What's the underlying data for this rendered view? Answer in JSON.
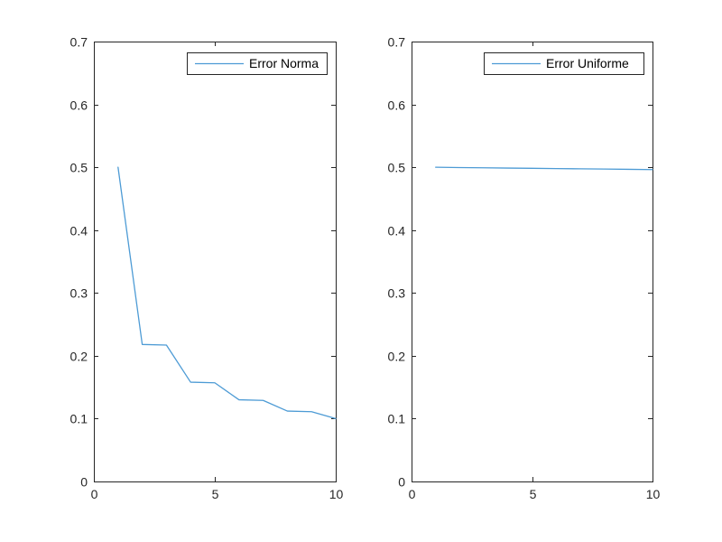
{
  "figure": {
    "background": "#ffffff",
    "axis_color": "#262626",
    "tick_label_color": "#262626",
    "legend_text_color": "#000000",
    "legend_border_color": "#262626",
    "legend_background": "#ffffff",
    "line_color": "#4D9BD5"
  },
  "chart_data": [
    {
      "type": "line",
      "title": "",
      "xlabel": "",
      "ylabel": "",
      "x": [
        1,
        2,
        3,
        4,
        5,
        6,
        7,
        8,
        9,
        10
      ],
      "series": [
        {
          "name": "Error Norma",
          "values": [
            0.5,
            0.218,
            0.217,
            0.158,
            0.157,
            0.13,
            0.129,
            0.112,
            0.111,
            0.1
          ]
        }
      ],
      "xlim": [
        0,
        10
      ],
      "ylim": [
        0,
        0.7
      ],
      "xticks": [
        0,
        5,
        10
      ],
      "xtick_labels": [
        "0",
        "5",
        "10"
      ],
      "yticks": [
        0,
        0.1,
        0.2,
        0.3,
        0.4,
        0.5,
        0.6,
        0.7
      ],
      "ytick_labels": [
        "0",
        "0.1",
        "0.2",
        "0.3",
        "0.4",
        "0.5",
        "0.6",
        "0.7"
      ],
      "grid": false,
      "legend": {
        "label": "Error Norma",
        "position": "top-right"
      }
    },
    {
      "type": "line",
      "title": "",
      "xlabel": "",
      "ylabel": "",
      "x": [
        1,
        2,
        3,
        4,
        5,
        6,
        7,
        8,
        9,
        10
      ],
      "series": [
        {
          "name": "Error Uniforme",
          "values": [
            0.5,
            0.4995,
            0.4991,
            0.4987,
            0.4983,
            0.4979,
            0.4975,
            0.4971,
            0.4967,
            0.4963
          ]
        }
      ],
      "xlim": [
        0,
        10
      ],
      "ylim": [
        0,
        0.7
      ],
      "xticks": [
        0,
        5,
        10
      ],
      "xtick_labels": [
        "0",
        "5",
        "10"
      ],
      "yticks": [
        0,
        0.1,
        0.2,
        0.3,
        0.4,
        0.5,
        0.6,
        0.7
      ],
      "ytick_labels": [
        "0",
        "0.1",
        "0.2",
        "0.3",
        "0.4",
        "0.5",
        "0.6",
        "0.7"
      ],
      "grid": false,
      "legend": {
        "label": "Error Uniforme",
        "position": "top-right"
      }
    }
  ]
}
